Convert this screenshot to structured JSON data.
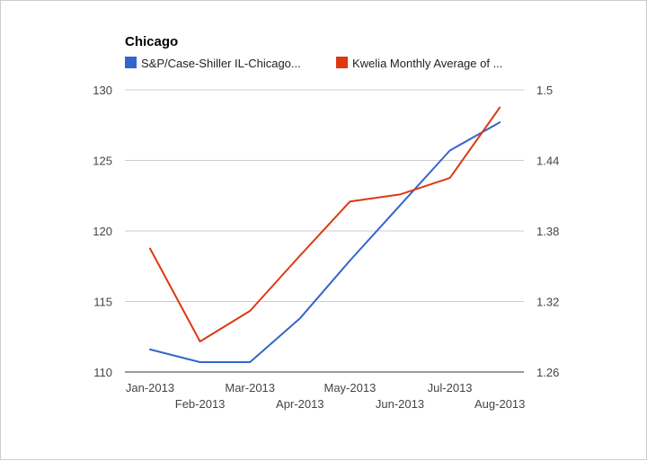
{
  "chart_data": {
    "type": "line",
    "title": "Chicago",
    "legend_position": "top",
    "grid": true,
    "categories": [
      "Jan-2013",
      "Feb-2013",
      "Mar-2013",
      "Apr-2013",
      "May-2013",
      "Jun-2013",
      "Jul-2013",
      "Aug-2013"
    ],
    "x_tick_labels_row1": [
      "Jan-2013",
      "Mar-2013",
      "May-2013",
      "Jul-2013"
    ],
    "x_tick_labels_row2": [
      "Feb-2013",
      "Apr-2013",
      "Jun-2013",
      "Aug-2013"
    ],
    "left_axis": {
      "ylim": [
        110,
        130
      ],
      "ticks": [
        "130",
        "125",
        "120",
        "115",
        "110"
      ]
    },
    "right_axis": {
      "ylim": [
        1.26,
        1.5
      ],
      "ticks": [
        "1.5",
        "1.44",
        "1.38",
        "1.32",
        "1.26"
      ]
    },
    "series": [
      {
        "name": "S&P/Case-Shiller IL-Chicago...",
        "axis": "left",
        "color": "#3366cc",
        "values": [
          111.6,
          110.7,
          110.7,
          113.8,
          117.9,
          121.8,
          125.7,
          127.7
        ]
      },
      {
        "name": "Kwelia Monthly Average of ...",
        "axis": "right",
        "color": "#dc3912",
        "values": [
          1.365,
          1.286,
          1.312,
          1.359,
          1.405,
          1.411,
          1.425,
          1.485
        ]
      }
    ]
  }
}
